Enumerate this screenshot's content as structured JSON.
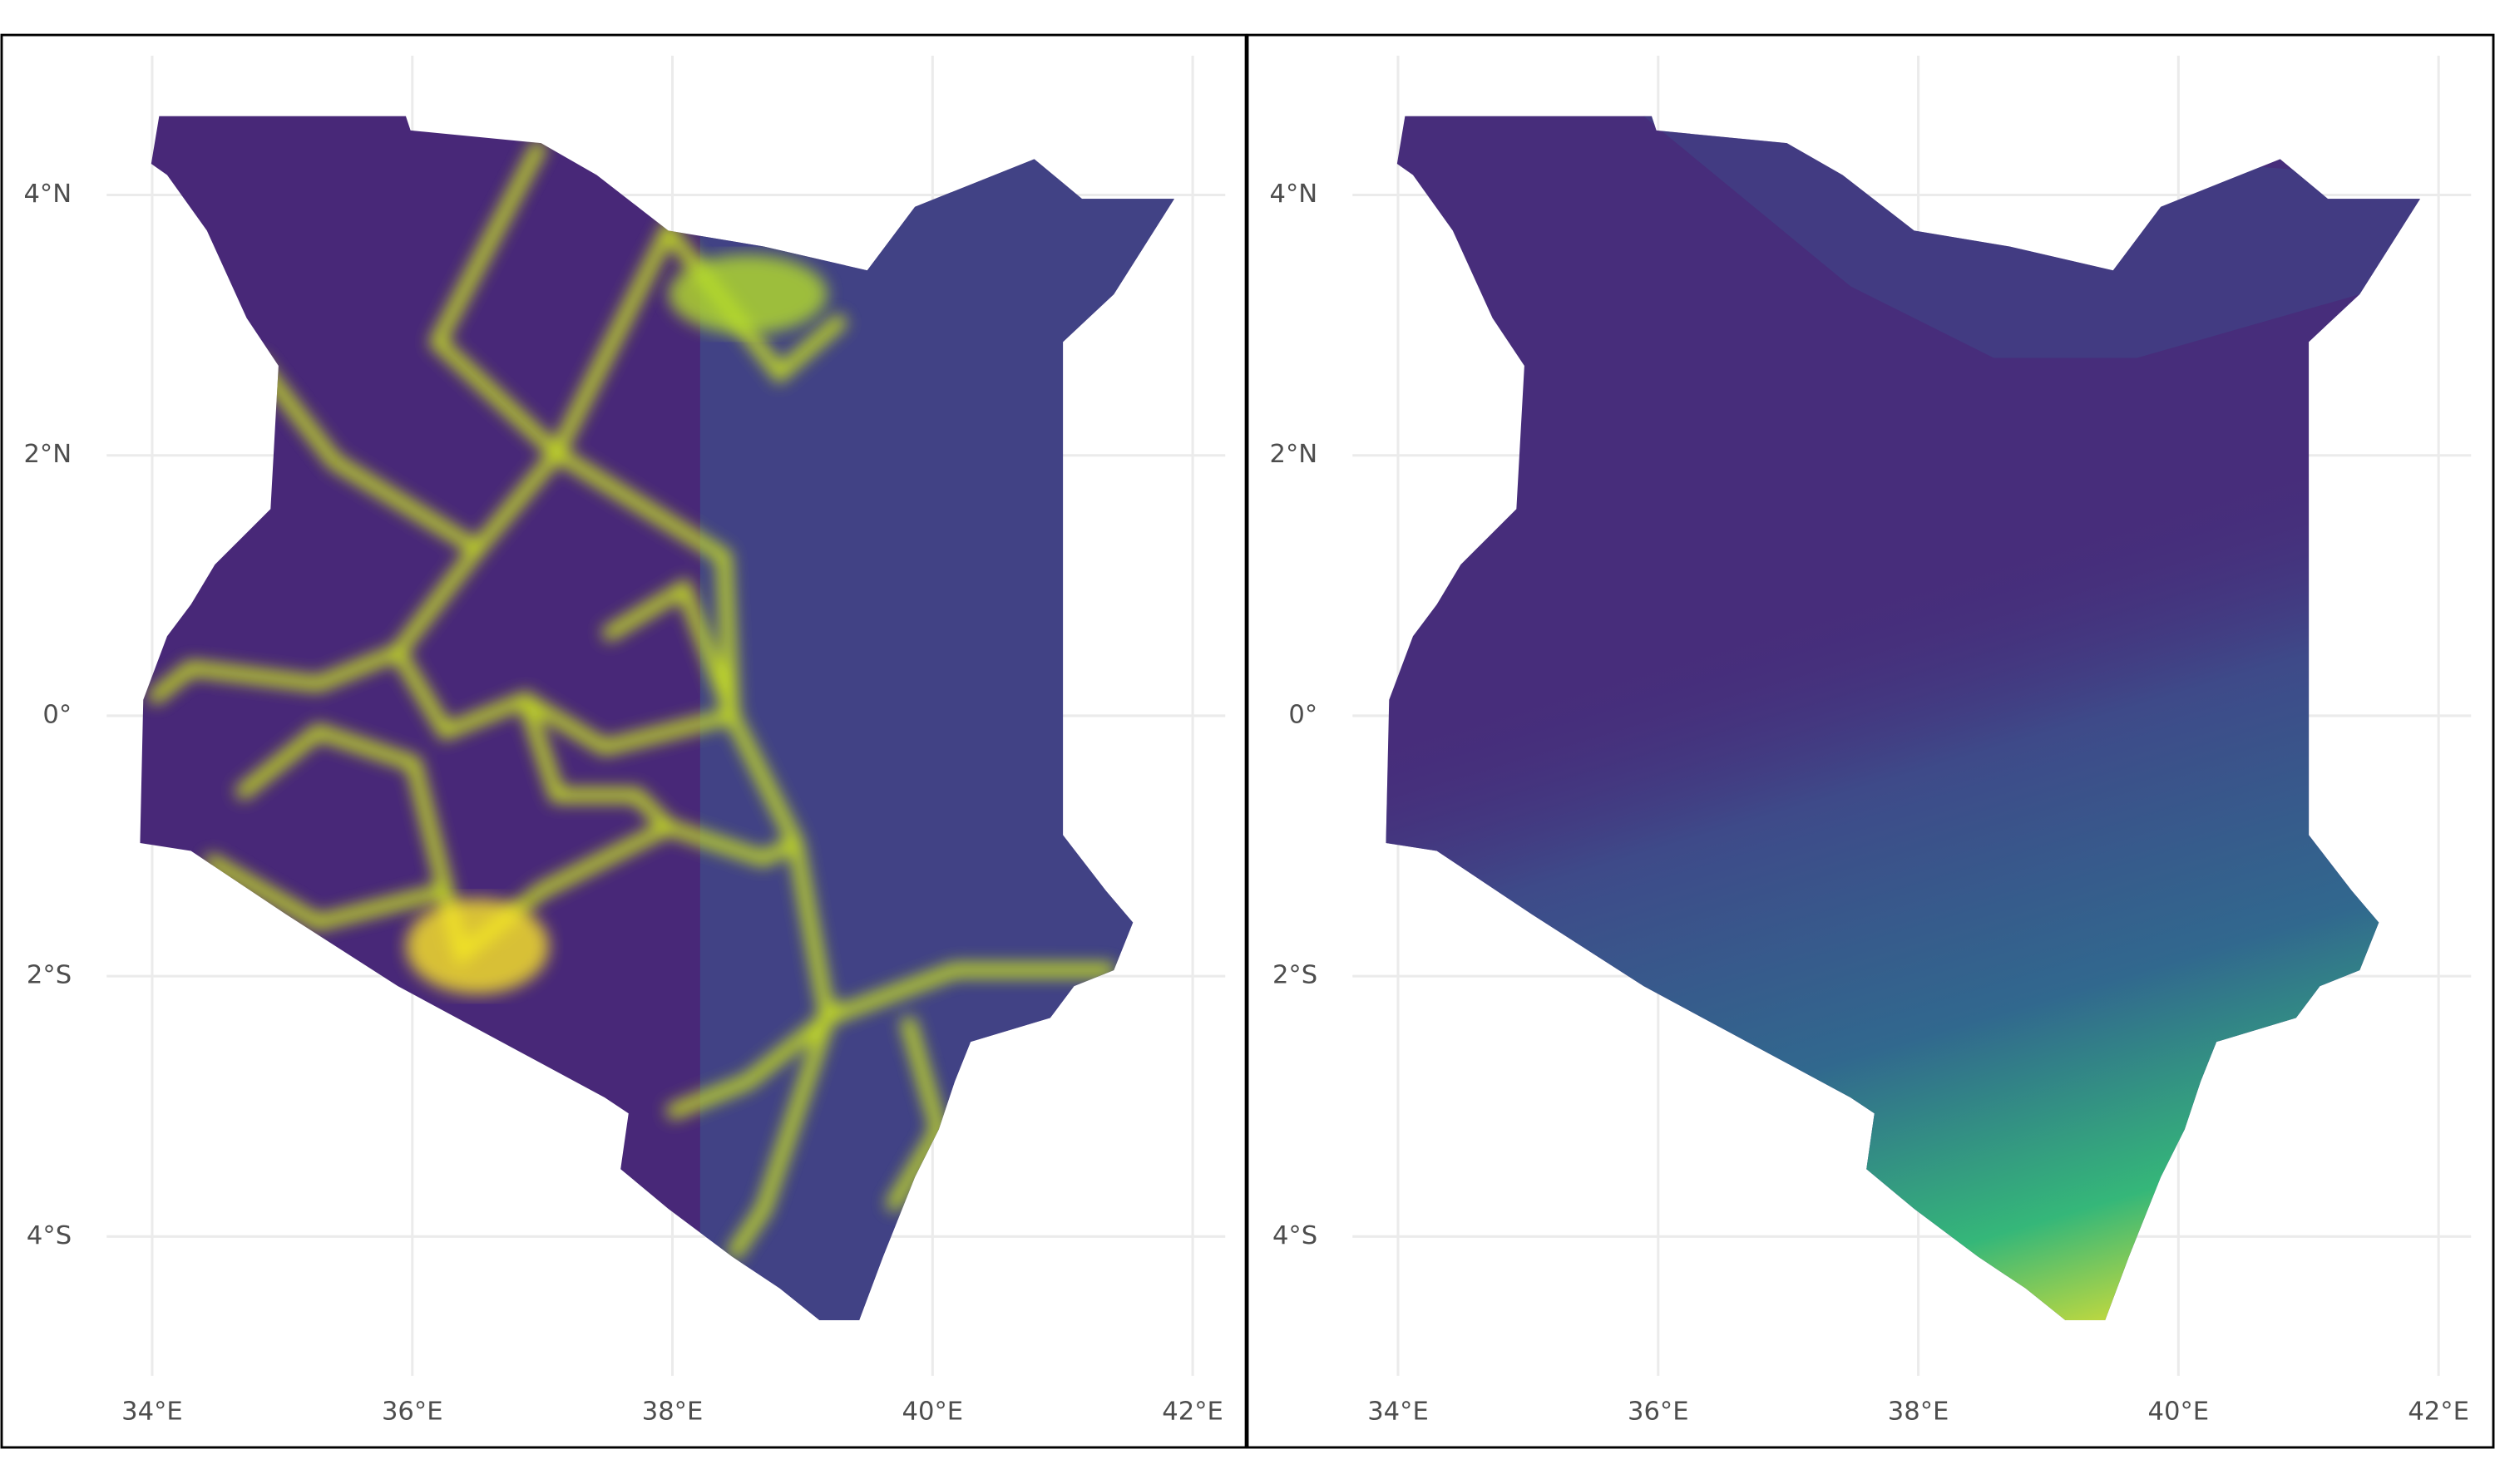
{
  "panels": [
    {
      "xlim": [
        33.65,
        42.25
      ],
      "ylim": [
        -5.07,
        5.07
      ],
      "xticks": [
        {
          "value": 34,
          "label": "34°E"
        },
        {
          "value": 36,
          "label": "36°E"
        },
        {
          "value": 38,
          "label": "38°E"
        },
        {
          "value": 40,
          "label": "40°E"
        },
        {
          "value": 42,
          "label": "42°E"
        }
      ],
      "yticks": [
        {
          "value": 4,
          "label": "4°N"
        },
        {
          "value": 2,
          "label": "2°N"
        },
        {
          "value": 0,
          "label": "0°"
        },
        {
          "value": -2,
          "label": "2°S"
        },
        {
          "value": -4,
          "label": "4°S"
        }
      ]
    },
    {
      "xlim": [
        33.65,
        42.25
      ],
      "ylim": [
        -5.07,
        5.07
      ],
      "xticks": [
        {
          "value": 34,
          "label": "34°E"
        },
        {
          "value": 36,
          "label": "36°E"
        },
        {
          "value": 38,
          "label": "38°E"
        },
        {
          "value": 40,
          "label": "40°E"
        },
        {
          "value": 42,
          "label": "42°E"
        }
      ],
      "yticks": [
        {
          "value": 4,
          "label": "4°N"
        },
        {
          "value": 2,
          "label": "2°N"
        },
        {
          "value": 0,
          "label": "0°"
        },
        {
          "value": -2,
          "label": "2°S"
        },
        {
          "value": -4,
          "label": "4°S"
        }
      ]
    }
  ]
}
